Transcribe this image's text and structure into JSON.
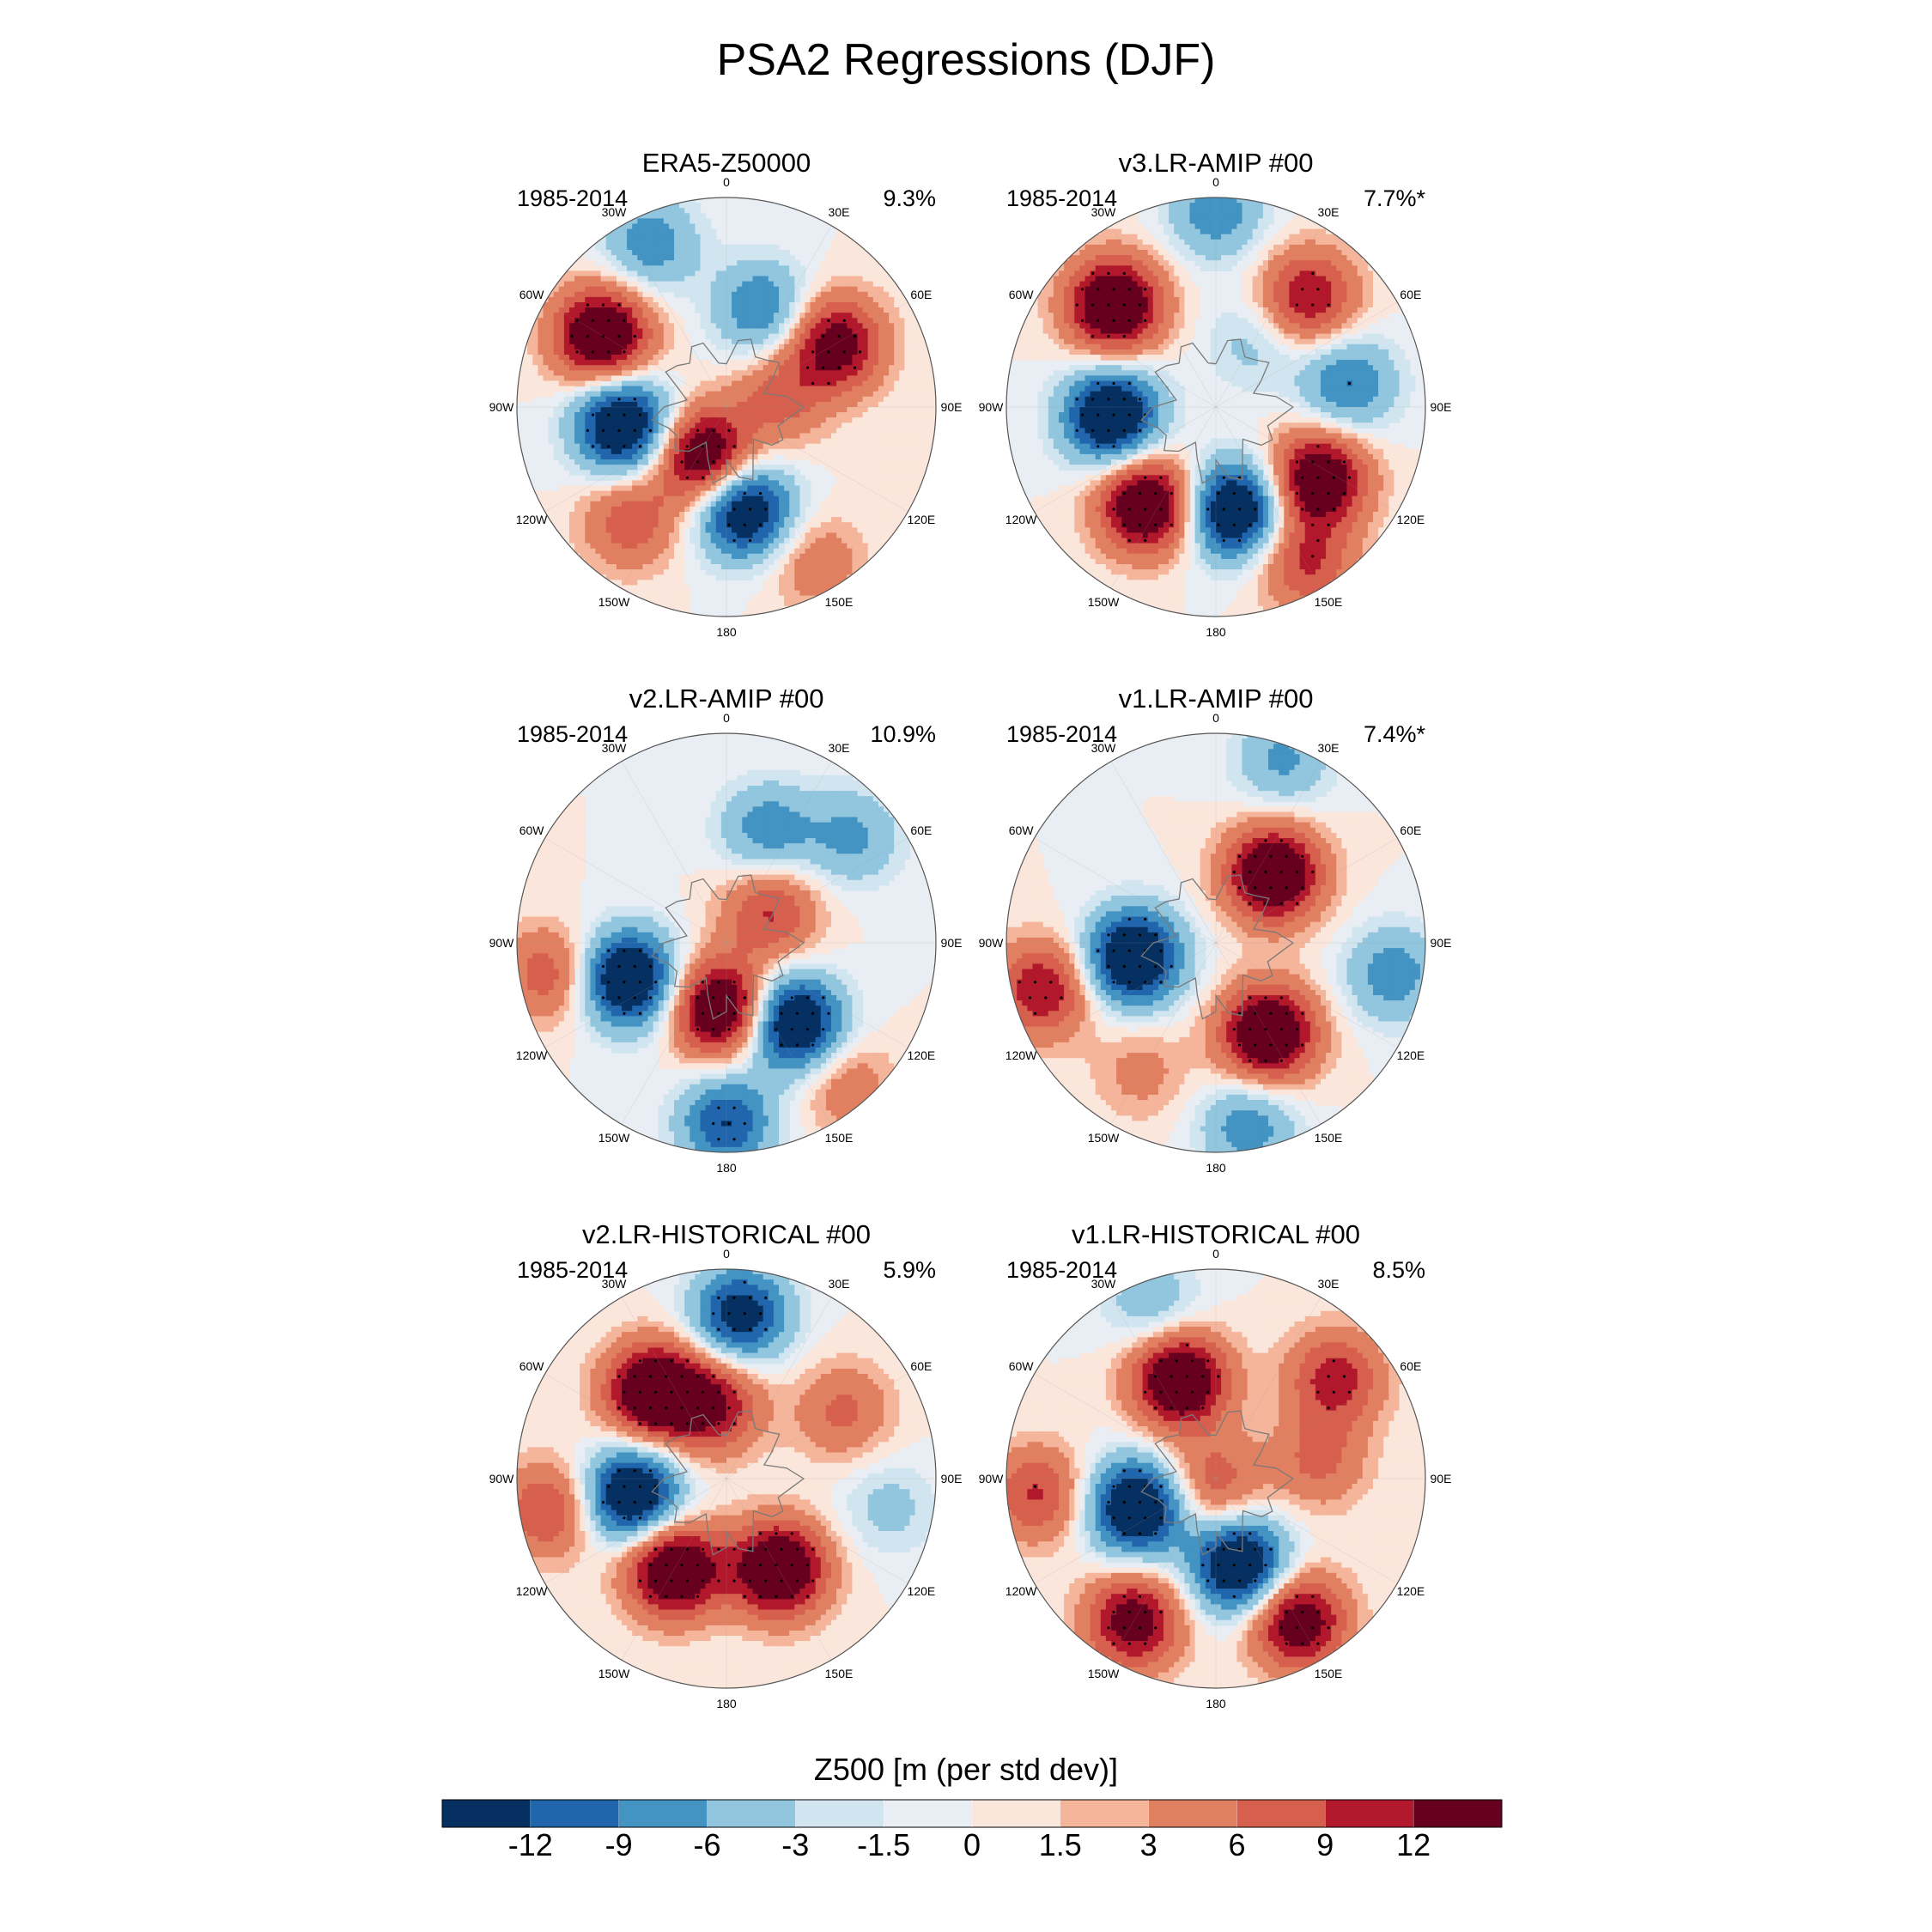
{
  "chart_data": {
    "type": "heatmap",
    "projection": "south-polar-stereographic",
    "title": "PSA2 Regressions (DJF)",
    "colorbar": {
      "title": "Z500 [m (per std dev)]",
      "tick_labels": [
        "-12",
        "-9",
        "-6",
        "-3",
        "-1.5",
        "0",
        "1.5",
        "3",
        "6",
        "9",
        "12"
      ],
      "levels": [
        -12,
        -9,
        -6,
        -3,
        -1.5,
        0,
        1.5,
        3,
        6,
        9,
        12
      ],
      "colors": [
        "#053061",
        "#2166ac",
        "#4393c3",
        "#92c5de",
        "#d1e5f0",
        "#e8eef3",
        "#fbe6dc",
        "#f4b59b",
        "#e08060",
        "#d6604d",
        "#b2182b",
        "#67001f"
      ]
    },
    "longitude_labels": [
      "0",
      "30E",
      "60E",
      "90E",
      "120E",
      "150E",
      "180",
      "150W",
      "120W",
      "90W",
      "60W",
      "30W"
    ],
    "panels": [
      {
        "title": "ERA5-Z50000",
        "period": "1985-2014",
        "variance": "9.3%",
        "anomalies": [
          {
            "lon": -60,
            "lat": -42,
            "value": 14
          },
          {
            "lon": -100,
            "lat": -55,
            "value": -14
          },
          {
            "lon": 170,
            "lat": -55,
            "value": -13
          },
          {
            "lon": -155,
            "lat": -72,
            "value": 13
          },
          {
            "lon": 60,
            "lat": -48,
            "value": 11
          },
          {
            "lon": -140,
            "lat": -40,
            "value": 6
          },
          {
            "lon": -25,
            "lat": -30,
            "value": -6
          },
          {
            "lon": 20,
            "lat": -55,
            "value": -7
          },
          {
            "lon": 80,
            "lat": -72,
            "value": 5
          },
          {
            "lon": 150,
            "lat": -30,
            "value": 4
          }
        ]
      },
      {
        "title": "v3.LR-AMIP  #00",
        "period": "1985-2014",
        "variance": "7.7%*",
        "anomalies": [
          {
            "lon": -45,
            "lat": -42,
            "value": 14
          },
          {
            "lon": 40,
            "lat": -42,
            "value": 9
          },
          {
            "lon": -95,
            "lat": -55,
            "value": -14
          },
          {
            "lon": -145,
            "lat": -50,
            "value": 14
          },
          {
            "lon": 170,
            "lat": -55,
            "value": -14
          },
          {
            "lon": 125,
            "lat": -48,
            "value": 13
          },
          {
            "lon": 80,
            "lat": -45,
            "value": -7
          },
          {
            "lon": 150,
            "lat": -30,
            "value": 7
          },
          {
            "lon": 0,
            "lat": -25,
            "value": -6
          },
          {
            "lon": 30,
            "lat": -65,
            "value": -3
          }
        ]
      },
      {
        "title": "v2.LR-AMIP  #00",
        "period": "1985-2014",
        "variance": "10.9%",
        "anomalies": [
          {
            "lon": -110,
            "lat": -55,
            "value": -14
          },
          {
            "lon": -175,
            "lat": -68,
            "value": 14
          },
          {
            "lon": 140,
            "lat": -55,
            "value": -14
          },
          {
            "lon": 55,
            "lat": -72,
            "value": 7
          },
          {
            "lon": 20,
            "lat": -50,
            "value": -6
          },
          {
            "lon": 50,
            "lat": -35,
            "value": -5
          },
          {
            "lon": -100,
            "lat": -30,
            "value": 6
          },
          {
            "lon": 180,
            "lat": -30,
            "value": -9
          },
          {
            "lon": 140,
            "lat": -28,
            "value": 4
          }
        ]
      },
      {
        "title": "v1.LR-AMIP  #00",
        "period": "1985-2014",
        "variance": "7.4%*",
        "anomalies": [
          {
            "lon": 40,
            "lat": -60,
            "value": 14
          },
          {
            "lon": 150,
            "lat": -55,
            "value": 14
          },
          {
            "lon": -100,
            "lat": -62,
            "value": -14
          },
          {
            "lon": -105,
            "lat": -30,
            "value": 9
          },
          {
            "lon": 20,
            "lat": -25,
            "value": -5
          },
          {
            "lon": 100,
            "lat": -30,
            "value": -6
          },
          {
            "lon": 170,
            "lat": -28,
            "value": -6
          },
          {
            "lon": -150,
            "lat": -40,
            "value": 3
          }
        ]
      },
      {
        "title": "v2.LR-HISTORICAL  #00",
        "period": "1985-2014",
        "variance": "5.9%",
        "anomalies": [
          {
            "lon": -40,
            "lat": -52,
            "value": 14
          },
          {
            "lon": -10,
            "lat": -65,
            "value": 9
          },
          {
            "lon": -100,
            "lat": -58,
            "value": -14
          },
          {
            "lon": -150,
            "lat": -55,
            "value": 14
          },
          {
            "lon": 150,
            "lat": -55,
            "value": 14
          },
          {
            "lon": 5,
            "lat": -35,
            "value": -11
          },
          {
            "lon": -100,
            "lat": -30,
            "value": 7
          },
          {
            "lon": 60,
            "lat": -45,
            "value": 5
          },
          {
            "lon": 100,
            "lat": -35,
            "value": -3
          }
        ]
      },
      {
        "title": "v1.LR-HISTORICAL  #00",
        "period": "1985-2014",
        "variance": "8.5%",
        "anomalies": [
          {
            "lon": -20,
            "lat": -55,
            "value": 14
          },
          {
            "lon": -110,
            "lat": -62,
            "value": -14
          },
          {
            "lon": 165,
            "lat": -60,
            "value": -14
          },
          {
            "lon": -150,
            "lat": -35,
            "value": 11
          },
          {
            "lon": 150,
            "lat": -35,
            "value": 12
          },
          {
            "lon": 50,
            "lat": -38,
            "value": 8
          },
          {
            "lon": -95,
            "lat": -30,
            "value": 7
          },
          {
            "lon": -160,
            "lat": -88,
            "value": 6
          },
          {
            "lon": 80,
            "lat": -55,
            "value": 5
          },
          {
            "lon": -20,
            "lat": -28,
            "value": -4
          }
        ]
      }
    ]
  }
}
